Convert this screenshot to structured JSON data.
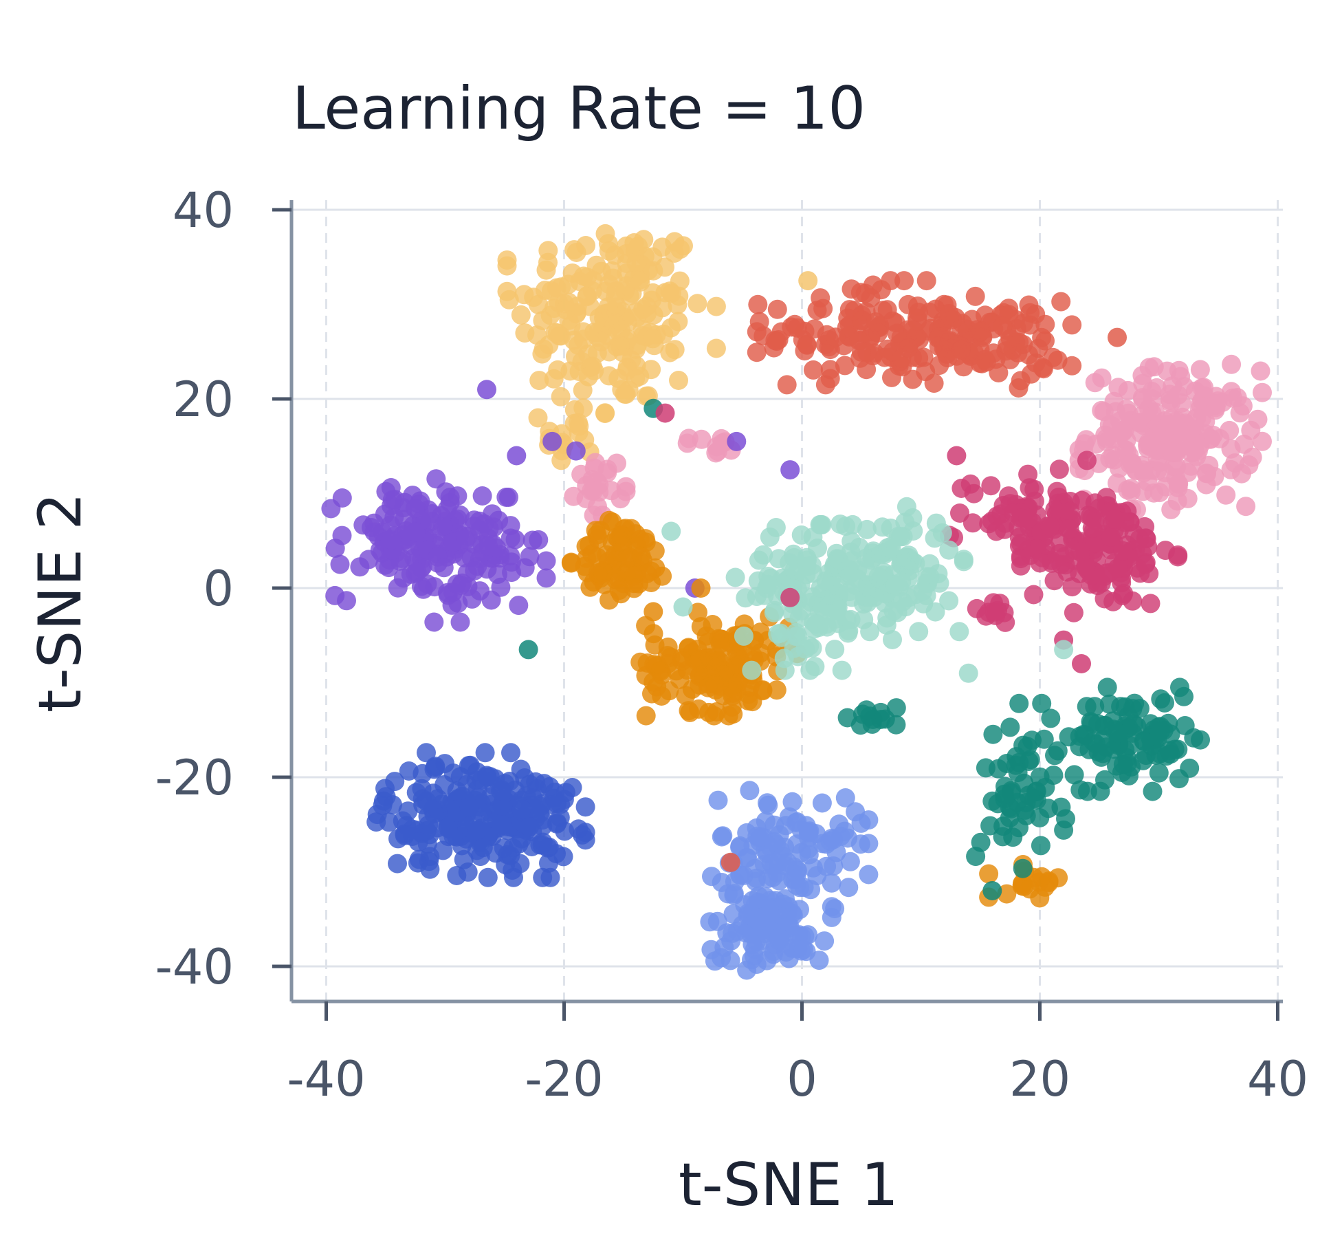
{
  "chart_data": {
    "type": "scatter",
    "title": "Learning Rate = 10",
    "xlabel": "t-SNE 1",
    "ylabel": "t-SNE 2",
    "xlim": [
      -43,
      40.5
    ],
    "ylim": [
      -44,
      41
    ],
    "xticks": [
      -40,
      -20,
      0,
      20,
      40
    ],
    "yticks": [
      -40,
      -20,
      0,
      20,
      40
    ],
    "xtick_labels": [
      "-40",
      "-20",
      "0",
      "20",
      "40"
    ],
    "ytick_labels": [
      "-40",
      "-20",
      "0",
      "20",
      "40"
    ],
    "grid": true,
    "legend": "none",
    "clusters": [
      {
        "color": "#f5c46e",
        "center": [
          -16,
          29
        ],
        "spread": [
          4,
          5
        ],
        "count": 190
      },
      {
        "color": "#f5c46e",
        "center": [
          -19,
          16
        ],
        "spread": [
          1.5,
          2
        ],
        "count": 18
      },
      {
        "color": "#e05d4b",
        "center": [
          5,
          27
        ],
        "spread": [
          4,
          2.5
        ],
        "count": 110
      },
      {
        "color": "#e05d4b",
        "center": [
          15,
          26
        ],
        "spread": [
          3.5,
          2.2
        ],
        "count": 100
      },
      {
        "color": "#ee9ab9",
        "center": [
          31,
          16
        ],
        "spread": [
          3.5,
          3.5
        ],
        "count": 200
      },
      {
        "color": "#ee9ab9",
        "center": [
          -17,
          11
        ],
        "spread": [
          1,
          1.5
        ],
        "count": 22
      },
      {
        "color": "#ee9ab9",
        "center": [
          -7,
          15
        ],
        "spread": [
          1.2,
          0.5
        ],
        "count": 10
      },
      {
        "color": "#7b4fd6",
        "center": [
          -33,
          5
        ],
        "spread": [
          3,
          3
        ],
        "count": 110
      },
      {
        "color": "#7b4fd6",
        "center": [
          -27,
          3
        ],
        "spread": [
          2.5,
          3
        ],
        "count": 70
      },
      {
        "color": "#cf3d74",
        "center": [
          19,
          8
        ],
        "spread": [
          3,
          2.5
        ],
        "count": 70
      },
      {
        "color": "#cf3d74",
        "center": [
          25,
          4
        ],
        "spread": [
          3,
          3
        ],
        "count": 130
      },
      {
        "color": "#cf3d74",
        "center": [
          16,
          -2.5
        ],
        "spread": [
          1,
          0.7
        ],
        "count": 10
      },
      {
        "color": "#e48a0a",
        "center": [
          -15,
          3
        ],
        "spread": [
          2,
          2
        ],
        "count": 75
      },
      {
        "color": "#e48a0a",
        "center": [
          -7,
          -8
        ],
        "spread": [
          3,
          2.5
        ],
        "count": 140
      },
      {
        "color": "#e48a0a",
        "center": [
          19,
          -31
        ],
        "spread": [
          1.5,
          0.8
        ],
        "count": 18
      },
      {
        "color": "#9ed9cb",
        "center": [
          1,
          -1
        ],
        "spread": [
          3,
          3.5
        ],
        "count": 120
      },
      {
        "color": "#9ed9cb",
        "center": [
          7,
          2
        ],
        "spread": [
          3,
          3
        ],
        "count": 110
      },
      {
        "color": "#12877a",
        "center": [
          19,
          -21
        ],
        "spread": [
          2,
          4
        ],
        "count": 60
      },
      {
        "color": "#12877a",
        "center": [
          28,
          -16
        ],
        "spread": [
          2.5,
          2.5
        ],
        "count": 90
      },
      {
        "color": "#12877a",
        "center": [
          6,
          -13.5
        ],
        "spread": [
          1.5,
          0.5
        ],
        "count": 12
      },
      {
        "color": "#3a5ccc",
        "center": [
          -27,
          -24
        ],
        "spread": [
          4,
          3
        ],
        "count": 230
      },
      {
        "color": "#7292eb",
        "center": [
          -1,
          -28
        ],
        "spread": [
          3,
          3
        ],
        "count": 110
      },
      {
        "color": "#7292eb",
        "center": [
          -3,
          -36
        ],
        "spread": [
          2.5,
          2
        ],
        "count": 100
      }
    ],
    "outliers": [
      {
        "color": "#7b4fd6",
        "x": -26.5,
        "y": 21
      },
      {
        "color": "#7b4fd6",
        "x": -24,
        "y": 14
      },
      {
        "color": "#7b4fd6",
        "x": -21,
        "y": 15.5
      },
      {
        "color": "#7b4fd6",
        "x": -19,
        "y": 14.5
      },
      {
        "color": "#7b4fd6",
        "x": -5.5,
        "y": 15.5
      },
      {
        "color": "#7b4fd6",
        "x": -1,
        "y": 12.5
      },
      {
        "color": "#7b4fd6",
        "x": -9,
        "y": 0
      },
      {
        "color": "#12877a",
        "x": -23,
        "y": -6.5
      },
      {
        "color": "#12877a",
        "x": -12.5,
        "y": 19
      },
      {
        "color": "#12877a",
        "x": 16,
        "y": -32
      },
      {
        "color": "#cf3d74",
        "x": -11.5,
        "y": 18.5
      },
      {
        "color": "#cf3d74",
        "x": -1,
        "y": -1
      },
      {
        "color": "#cf3d74",
        "x": 13,
        "y": 14
      },
      {
        "color": "#cf3d74",
        "x": 22,
        "y": -5.5
      },
      {
        "color": "#cf3d74",
        "x": 23.5,
        "y": -8
      },
      {
        "color": "#e05d4b",
        "x": -6,
        "y": -29
      },
      {
        "color": "#e05d4b",
        "x": 26.5,
        "y": 26.5
      },
      {
        "color": "#e48a0a",
        "x": -8.5,
        "y": 0
      },
      {
        "color": "#e48a0a",
        "x": -12.5,
        "y": -2.5
      },
      {
        "color": "#f5c46e",
        "x": 0.5,
        "y": 32.5
      },
      {
        "color": "#9ed9cb",
        "x": -11,
        "y": 6
      },
      {
        "color": "#9ed9cb",
        "x": 14,
        "y": -9
      },
      {
        "color": "#9ed9cb",
        "x": 22,
        "y": -6.5
      },
      {
        "color": "#9ed9cb",
        "x": -10,
        "y": -2
      }
    ]
  }
}
